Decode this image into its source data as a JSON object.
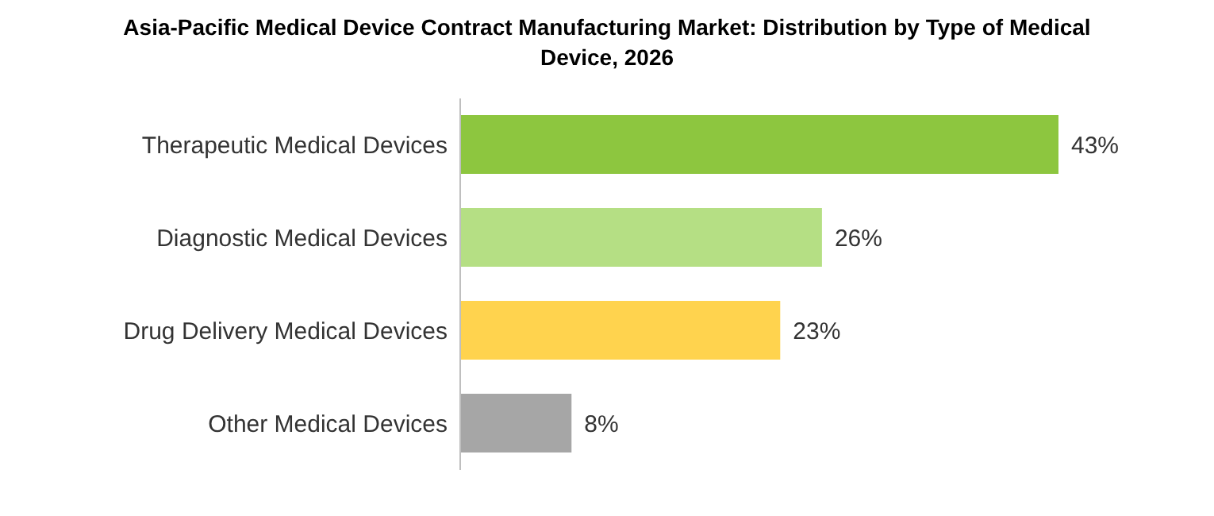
{
  "chart_data": {
    "type": "bar",
    "orientation": "horizontal",
    "title": "Asia-Pacific Medical Device Contract Manufacturing Market: Distribution by Type of Medical Device, 2026",
    "categories": [
      "Therapeutic Medical Devices",
      "Diagnostic Medical Devices",
      "Drug Delivery Medical Devices",
      "Other Medical Devices"
    ],
    "values": [
      43,
      26,
      23,
      8
    ],
    "value_labels": [
      "43%",
      "26%",
      "23%",
      "8%"
    ],
    "colors": [
      "#8dc63f",
      "#b5df84",
      "#ffd34e",
      "#a6a6a6"
    ]
  }
}
